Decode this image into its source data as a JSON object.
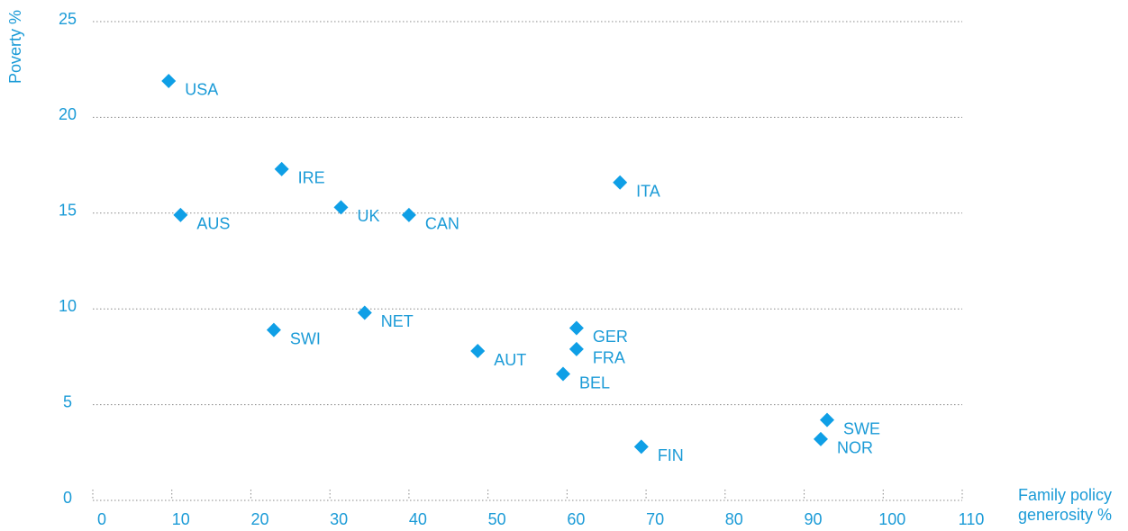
{
  "chart_data": {
    "type": "scatter",
    "y_label": "Poverty %",
    "x_label_lines": [
      "Family policy",
      "generosity %"
    ],
    "color": "#0f9fe6",
    "labels": [
      "USA",
      "AUS",
      "IRE",
      "UK",
      "CAN",
      "ITA",
      "NET",
      "SWI",
      "AUT",
      "GER",
      "FRA",
      "BEL",
      "FIN",
      "SWE",
      "NOR"
    ],
    "x": [
      9.6,
      11.1,
      23.9,
      31.4,
      40.0,
      66.7,
      34.4,
      22.9,
      48.7,
      61.2,
      61.2,
      59.5,
      69.4,
      92.9,
      92.1
    ],
    "values": [
      21.9,
      14.9,
      17.3,
      15.3,
      14.9,
      16.6,
      9.8,
      8.9,
      7.8,
      9.0,
      7.9,
      6.6,
      2.8,
      4.2,
      3.2
    ],
    "xlim": [
      0,
      110
    ],
    "xticks": [
      0,
      10,
      20,
      30,
      40,
      50,
      60,
      70,
      80,
      90,
      100,
      110
    ],
    "ylim": [
      0,
      25
    ],
    "yticks": [
      0,
      5,
      10,
      15,
      20,
      25
    ],
    "grid": true
  }
}
